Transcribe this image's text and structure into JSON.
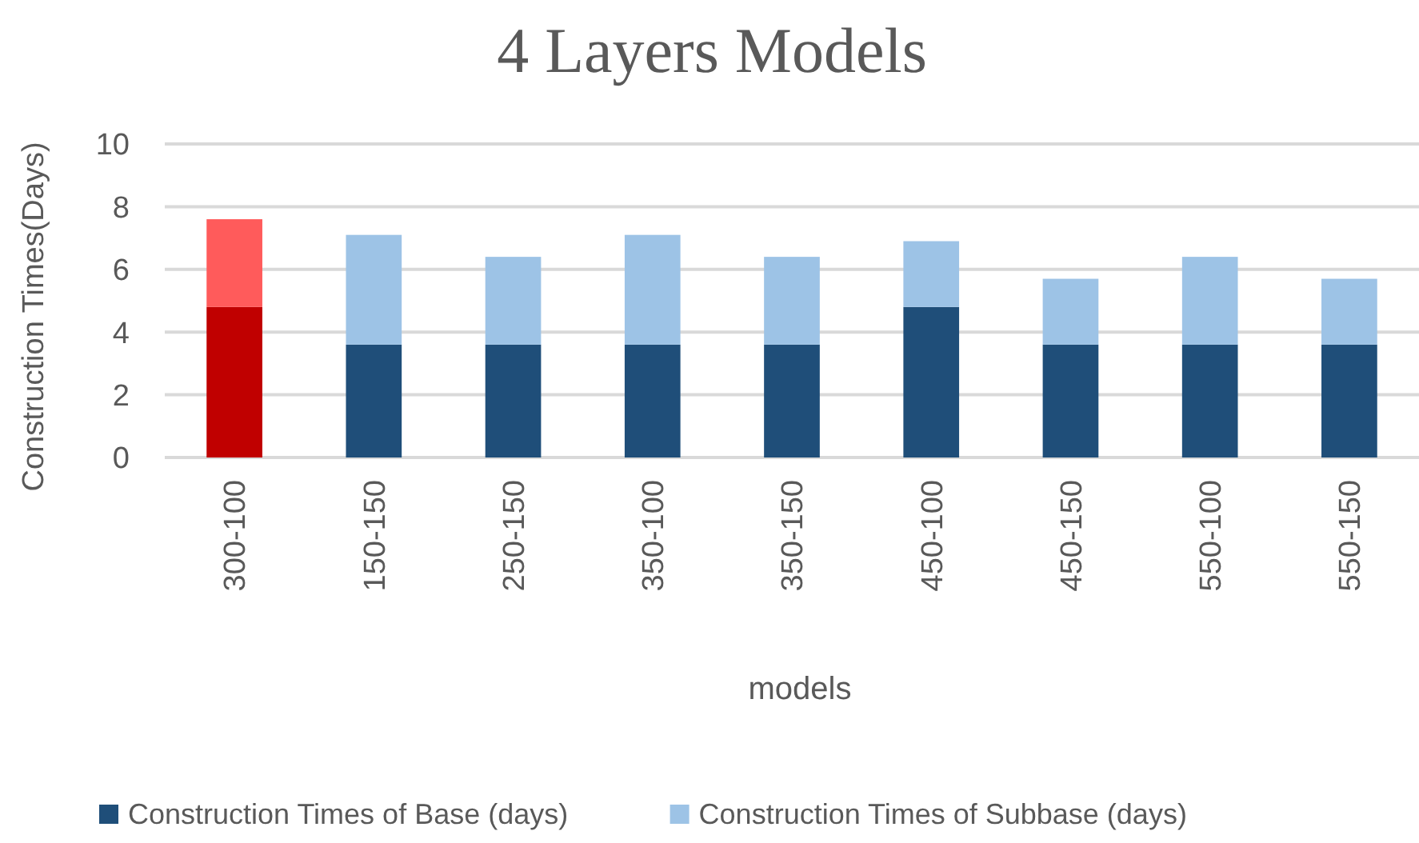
{
  "chart_data": {
    "type": "bar",
    "title": "4 Layers Models",
    "xlabel": "models",
    "ylabel": "Construction Times(Days)",
    "categories": [
      "300-100",
      "150-150",
      "250-150",
      "350-100",
      "350-150",
      "450-100",
      "450-150",
      "550-100",
      "550-150"
    ],
    "stacked": true,
    "series": [
      {
        "name": "Construction Times of Base (days)",
        "color": "#1f4e79",
        "colors": [
          "#c00000",
          "#1f4e79",
          "#1f4e79",
          "#1f4e79",
          "#1f4e79",
          "#1f4e79",
          "#1f4e79",
          "#1f4e79",
          "#1f4e79"
        ],
        "values": [
          4.8,
          3.6,
          3.6,
          3.6,
          3.6,
          4.8,
          3.6,
          3.6,
          3.6
        ]
      },
      {
        "name": "Construction Times of Subbase (days)",
        "color": "#9dc3e6",
        "colors": [
          "#ff5b5b",
          "#9dc3e6",
          "#9dc3e6",
          "#9dc3e6",
          "#9dc3e6",
          "#9dc3e6",
          "#9dc3e6",
          "#9dc3e6",
          "#9dc3e6"
        ],
        "values": [
          2.8,
          3.5,
          2.8,
          3.5,
          2.8,
          2.1,
          2.1,
          2.8,
          2.1
        ]
      }
    ],
    "ylim": [
      0,
      10
    ],
    "yticks": [
      0,
      2,
      4,
      6,
      8,
      10
    ],
    "grid": "y",
    "legend": "bottom"
  }
}
